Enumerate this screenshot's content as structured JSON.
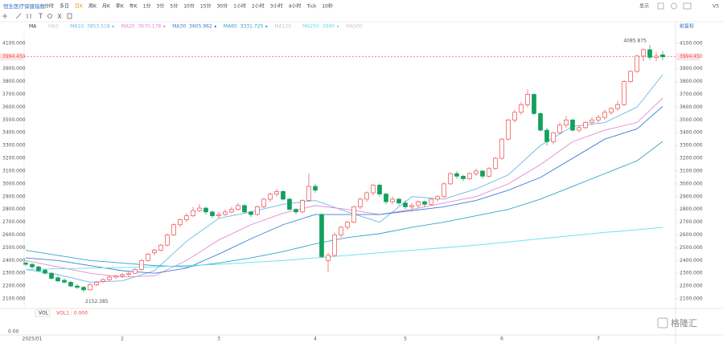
{
  "header": {
    "title": "恒生医疗保健指数",
    "periods": [
      "分时",
      "多日",
      "日K",
      "周K",
      "月K",
      "季K",
      "年K",
      "1分",
      "3分",
      "5分",
      "10分",
      "15分",
      "30分",
      "1小时",
      "2小时",
      "3小时",
      "4小时",
      "Tick",
      "10秒"
    ],
    "display": "显示",
    "version": "V5",
    "adjust": "前复权"
  },
  "chart_data": {
    "type": "candlestick",
    "indicator": "MA",
    "inactive_ma": [
      "MA5",
      "MA120",
      "MA500"
    ],
    "up_color": "#ee4a4f",
    "down_color": "#13a05c",
    "ylim": [
      2037,
      4175
    ],
    "yticks": [
      {
        "value": 4100,
        "label": "4100.000"
      },
      {
        "value": 3900,
        "label": "3900.000"
      },
      {
        "value": 3800,
        "label": "3800.000"
      },
      {
        "value": 3700,
        "label": "3700.000"
      },
      {
        "value": 3600,
        "label": "3600.000"
      },
      {
        "value": 3500,
        "label": "3500.000"
      },
      {
        "value": 3400,
        "label": "3400.000"
      },
      {
        "value": 3300,
        "label": "3300.000"
      },
      {
        "value": 3200,
        "label": "3200.000"
      },
      {
        "value": 3100,
        "label": "3100.000"
      },
      {
        "value": 3000,
        "label": "3000.000"
      },
      {
        "value": 2900,
        "label": "2900.000"
      },
      {
        "value": 2800,
        "label": "2800.000"
      },
      {
        "value": 2700,
        "label": "2700.000"
      },
      {
        "value": 2600,
        "label": "2600.000"
      },
      {
        "value": 2500,
        "label": "2500.000"
      },
      {
        "value": 2400,
        "label": "2400.000"
      },
      {
        "value": 2300,
        "label": "2300.000"
      },
      {
        "value": 2200,
        "label": "2200.000"
      },
      {
        "value": 2100,
        "label": "2100.000"
      }
    ],
    "last_price": {
      "value": 3994.45,
      "label": "3994.450"
    },
    "categories": [
      "2025/01",
      null,
      null,
      null,
      null,
      null,
      null,
      null,
      null,
      null,
      null,
      null,
      null,
      null,
      null,
      "2",
      null,
      null,
      null,
      null,
      null,
      null,
      null,
      null,
      null,
      null,
      null,
      null,
      null,
      null,
      "3",
      null,
      null,
      null,
      null,
      null,
      null,
      null,
      null,
      null,
      null,
      null,
      null,
      null,
      null,
      "4",
      null,
      null,
      null,
      null,
      null,
      null,
      null,
      null,
      null,
      null,
      null,
      null,
      null,
      "5",
      null,
      null,
      null,
      null,
      null,
      null,
      null,
      null,
      null,
      null,
      null,
      null,
      null,
      null,
      "6",
      null,
      null,
      null,
      null,
      null,
      null,
      null,
      null,
      null,
      null,
      null,
      null,
      null,
      null,
      "7",
      null,
      null,
      null,
      null,
      null,
      null,
      null,
      null,
      null,
      null
    ],
    "ohlc": [
      [
        2380,
        2395,
        2355,
        2370
      ],
      [
        2370,
        2380,
        2335,
        2350
      ],
      [
        2350,
        2360,
        2310,
        2320
      ],
      [
        2325,
        2335,
        2290,
        2300
      ],
      [
        2300,
        2310,
        2250,
        2260
      ],
      [
        2265,
        2280,
        2230,
        2240
      ],
      [
        2245,
        2260,
        2220,
        2230
      ],
      [
        2230,
        2240,
        2190,
        2200
      ],
      [
        2200,
        2215,
        2175,
        2190
      ],
      [
        2190,
        2200,
        2152.385,
        2170
      ],
      [
        2170,
        2220,
        2165,
        2210
      ],
      [
        2210,
        2240,
        2200,
        2230
      ],
      [
        2235,
        2260,
        2225,
        2250
      ],
      [
        2250,
        2285,
        2240,
        2270
      ],
      [
        2270,
        2290,
        2255,
        2280
      ],
      [
        2280,
        2300,
        2265,
        2290
      ],
      [
        2290,
        2310,
        2270,
        2300
      ],
      [
        2300,
        2340,
        2295,
        2330
      ],
      [
        2330,
        2410,
        2320,
        2400
      ],
      [
        2400,
        2460,
        2390,
        2450
      ],
      [
        2460,
        2490,
        2440,
        2480
      ],
      [
        2480,
        2530,
        2470,
        2520
      ],
      [
        2520,
        2610,
        2510,
        2600
      ],
      [
        2600,
        2690,
        2590,
        2680
      ],
      [
        2680,
        2730,
        2660,
        2720
      ],
      [
        2720,
        2770,
        2700,
        2750
      ],
      [
        2750,
        2820,
        2740,
        2790
      ],
      [
        2790,
        2840,
        2780,
        2810
      ],
      [
        2810,
        2820,
        2760,
        2780
      ],
      [
        2780,
        2790,
        2730,
        2750
      ],
      [
        2750,
        2780,
        2730,
        2760
      ],
      [
        2760,
        2800,
        2750,
        2780
      ],
      [
        2780,
        2820,
        2770,
        2800
      ],
      [
        2800,
        2850,
        2790,
        2830
      ],
      [
        2830,
        2840,
        2770,
        2780
      ],
      [
        2780,
        2790,
        2740,
        2760
      ],
      [
        2760,
        2830,
        2750,
        2820
      ],
      [
        2820,
        2890,
        2810,
        2880
      ],
      [
        2880,
        2930,
        2860,
        2920
      ],
      [
        2920,
        2960,
        2900,
        2940
      ],
      [
        2940,
        2950,
        2870,
        2880
      ],
      [
        2880,
        2890,
        2790,
        2800
      ],
      [
        2800,
        2810,
        2760,
        2780
      ],
      [
        2780,
        2880,
        2770,
        2870
      ],
      [
        2870,
        3080,
        2860,
        2980
      ],
      [
        2980,
        3000,
        2930,
        2950
      ],
      [
        2760,
        2770,
        2420,
        2430
      ],
      [
        2400,
        2460,
        2310,
        2440
      ],
      [
        2440,
        2620,
        2430,
        2600
      ],
      [
        2600,
        2670,
        2580,
        2660
      ],
      [
        2660,
        2710,
        2640,
        2700
      ],
      [
        2700,
        2830,
        2690,
        2820
      ],
      [
        2820,
        2890,
        2800,
        2880
      ],
      [
        2880,
        2940,
        2860,
        2930
      ],
      [
        2930,
        3000,
        2910,
        2990
      ],
      [
        2990,
        3000,
        2900,
        2920
      ],
      [
        2920,
        2930,
        2840,
        2860
      ],
      [
        2860,
        2900,
        2840,
        2880
      ],
      [
        2880,
        2890,
        2830,
        2850
      ],
      [
        2850,
        2870,
        2800,
        2820
      ],
      [
        2820,
        2850,
        2790,
        2830
      ],
      [
        2830,
        2870,
        2810,
        2860
      ],
      [
        2860,
        2870,
        2820,
        2840
      ],
      [
        2840,
        2890,
        2830,
        2880
      ],
      [
        2880,
        2910,
        2860,
        2900
      ],
      [
        2900,
        3010,
        2890,
        3000
      ],
      [
        3000,
        3090,
        2990,
        3080
      ],
      [
        3080,
        3100,
        3040,
        3060
      ],
      [
        3060,
        3070,
        3020,
        3040
      ],
      [
        3040,
        3090,
        3030,
        3080
      ],
      [
        3080,
        3120,
        3060,
        3100
      ],
      [
        3100,
        3110,
        3040,
        3060
      ],
      [
        3060,
        3130,
        3050,
        3120
      ],
      [
        3120,
        3210,
        3110,
        3200
      ],
      [
        3200,
        3360,
        3190,
        3350
      ],
      [
        3350,
        3510,
        3340,
        3500
      ],
      [
        3500,
        3580,
        3480,
        3560
      ],
      [
        3560,
        3640,
        3540,
        3620
      ],
      [
        3620,
        3740,
        3600,
        3700
      ],
      [
        3700,
        3710,
        3540,
        3550
      ],
      [
        3550,
        3560,
        3410,
        3420
      ],
      [
        3420,
        3440,
        3300,
        3330
      ],
      [
        3330,
        3410,
        3310,
        3400
      ],
      [
        3400,
        3480,
        3390,
        3460
      ],
      [
        3460,
        3530,
        3440,
        3500
      ],
      [
        3500,
        3510,
        3410,
        3420
      ],
      [
        3420,
        3460,
        3400,
        3440
      ],
      [
        3440,
        3490,
        3430,
        3480
      ],
      [
        3480,
        3520,
        3460,
        3500
      ],
      [
        3500,
        3540,
        3480,
        3520
      ],
      [
        3520,
        3580,
        3500,
        3560
      ],
      [
        3560,
        3600,
        3540,
        3590
      ],
      [
        3590,
        3650,
        3570,
        3620
      ],
      [
        3620,
        3810,
        3610,
        3800
      ],
      [
        3800,
        3890,
        3790,
        3880
      ],
      [
        3880,
        4010,
        3870,
        4000
      ],
      [
        4000,
        4060,
        3960,
        4050
      ],
      [
        4050,
        4085.875,
        3970,
        3990
      ],
      [
        3990,
        4030,
        3960,
        4000
      ],
      [
        4010,
        4040,
        3970,
        3994.45
      ]
    ],
    "ma_x": [
      0,
      5,
      10,
      15,
      20,
      25,
      30,
      35,
      40,
      45,
      50,
      55,
      60,
      65,
      70,
      75,
      80,
      85,
      90,
      95,
      99
    ],
    "ma_lines": [
      {
        "name": "MA10",
        "color": "#6bb8ea",
        "values": [
          2330,
          2290,
          2230,
          2240,
          2320,
          2550,
          2730,
          2780,
          2840,
          2870,
          2780,
          2700,
          2900,
          2880,
          2960,
          3070,
          3300,
          3450,
          3480,
          3600,
          3853.518
        ]
      },
      {
        "name": "MA20",
        "color": "#e28ad2",
        "values": [
          2400,
          2350,
          2300,
          2270,
          2280,
          2400,
          2560,
          2680,
          2770,
          2830,
          2800,
          2760,
          2800,
          2850,
          2900,
          3000,
          3150,
          3330,
          3420,
          3480,
          3670.178
        ]
      },
      {
        "name": "MA30",
        "color": "#3c7fd8",
        "values": [
          2420,
          2400,
          2360,
          2320,
          2300,
          2340,
          2450,
          2570,
          2680,
          2760,
          2760,
          2760,
          2790,
          2820,
          2870,
          2950,
          3050,
          3200,
          3350,
          3430,
          3605.962
        ]
      },
      {
        "name": "MA60",
        "color": "#33a3cc",
        "values": [
          2480,
          2440,
          2400,
          2380,
          2360,
          2350,
          2380,
          2420,
          2470,
          2530,
          2580,
          2610,
          2660,
          2700,
          2750,
          2800,
          2880,
          2980,
          3080,
          3180,
          3331.725
        ]
      },
      {
        "name": "MA250",
        "color": "#62e0ea",
        "values": [
          2330,
          2335,
          2340,
          2345,
          2350,
          2360,
          2370,
          2385,
          2400,
          2420,
          2440,
          2460,
          2480,
          2500,
          2520,
          2545,
          2570,
          2595,
          2620,
          2640,
          2660
        ]
      }
    ]
  },
  "volume": {
    "name": "VOL",
    "label": "VOL1 : 0.000",
    "axis_label": "0.00"
  },
  "watermark": "格隆汇"
}
